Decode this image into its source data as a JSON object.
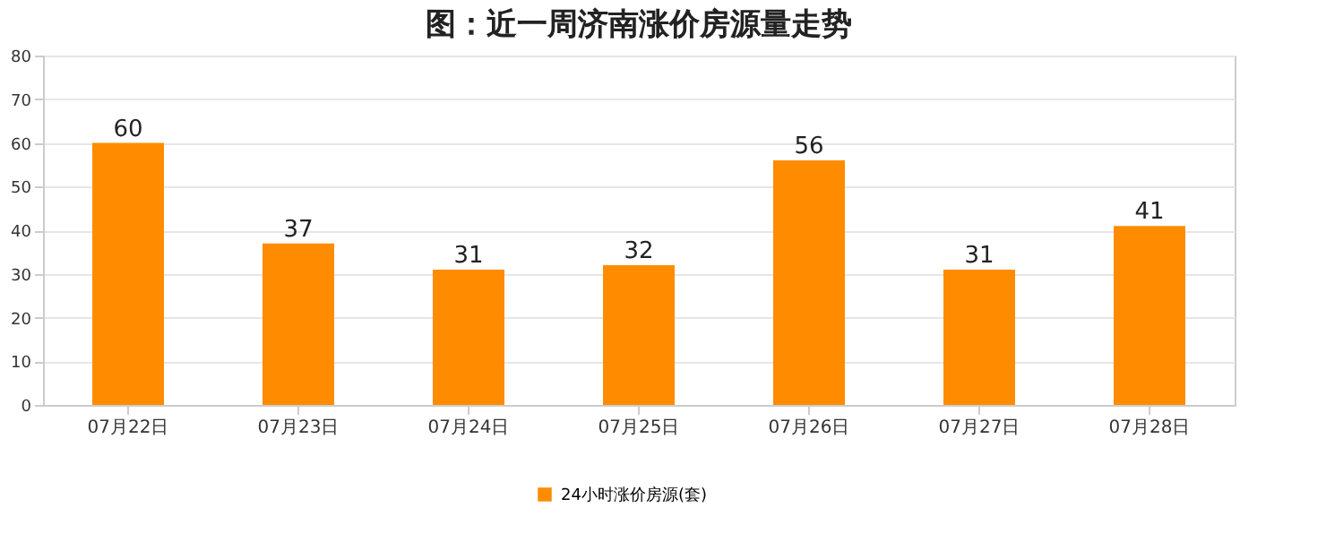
{
  "chart_data": {
    "type": "bar",
    "title": "图：近一周济南涨价房源量走势",
    "categories": [
      "07月22日",
      "07月23日",
      "07月24日",
      "07月25日",
      "07月26日",
      "07月27日",
      "07月28日"
    ],
    "series": [
      {
        "name": "24小时涨价房源(套)",
        "color": "#ff8c00",
        "values": [
          60,
          37,
          31,
          32,
          56,
          31,
          41
        ]
      }
    ],
    "ylim": [
      0,
      80
    ],
    "yticks": [
      0,
      10,
      20,
      30,
      40,
      50,
      60,
      70,
      80
    ],
    "grid": "y",
    "legend": "bottom",
    "data_labels": true
  }
}
